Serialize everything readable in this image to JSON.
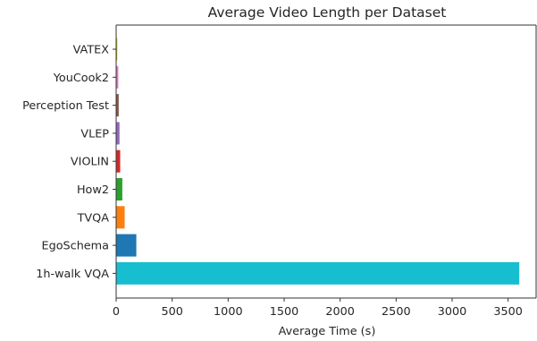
{
  "chart_data": {
    "type": "bar",
    "orientation": "horizontal",
    "title": "Average Video Length per Dataset",
    "xlabel": "Average Time (s)",
    "ylabel": "",
    "categories": [
      "VATEX",
      "YouCook2",
      "Perception Test",
      "VLEP",
      "VIOLIN",
      "How2",
      "TVQA",
      "EgoSchema",
      "1h-walk VQA"
    ],
    "values": [
      10,
      19,
      23,
      30,
      36,
      55,
      76,
      180,
      3600
    ],
    "colors": [
      "#bcbd22",
      "#e377c2",
      "#8c564b",
      "#9467bd",
      "#d62728",
      "#2ca02c",
      "#ff7f0e",
      "#1f77b4",
      "#17becf"
    ],
    "xlim": [
      0,
      3750
    ],
    "xticks": [
      0,
      500,
      1000,
      1500,
      2000,
      2500,
      3000,
      3500
    ],
    "grid": false,
    "legend": "none"
  }
}
